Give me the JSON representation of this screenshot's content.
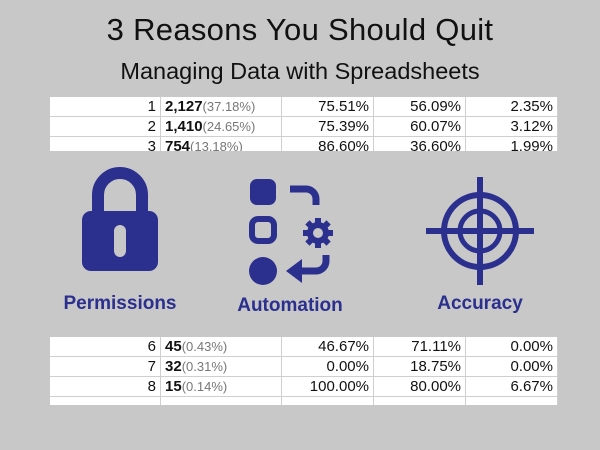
{
  "title": "3 Reasons You Should Quit",
  "subtitle": "Managing Data with Spreadsheets",
  "table_top_rows": [
    {
      "idx": "1",
      "count": "2,127",
      "pct": "(37.18%)",
      "c3": "75.51%",
      "c4": "56.09%",
      "c5": "2.35%"
    },
    {
      "idx": "2",
      "count": "1,410",
      "pct": "(24.65%)",
      "c3": "75.39%",
      "c4": "60.07%",
      "c5": "3.12%"
    },
    {
      "idx": "3",
      "count": "754",
      "pct": "(13.18%)",
      "c3": "86.60%",
      "c4": "36.60%",
      "c5": "1.99%"
    }
  ],
  "table_bottom_rows": [
    {
      "idx": "6",
      "count": "45",
      "pct": "(0.43%)",
      "c3": "46.67%",
      "c4": "71.11%",
      "c5": "0.00%"
    },
    {
      "idx": "7",
      "count": "32",
      "pct": "(0.31%)",
      "c3": "0.00%",
      "c4": "18.75%",
      "c5": "0.00%"
    },
    {
      "idx": "8",
      "count": "15",
      "pct": "(0.14%)",
      "c3": "100.00%",
      "c4": "80.00%",
      "c5": "6.67%"
    }
  ],
  "features": [
    {
      "label": "Permissions",
      "icon": "padlock-icon"
    },
    {
      "label": "Automation",
      "icon": "automation-icon"
    },
    {
      "label": "Accuracy",
      "icon": "crosshair-target-icon"
    }
  ],
  "colors": {
    "accent": "#2b2f8e",
    "background": "#c8c8c8"
  }
}
